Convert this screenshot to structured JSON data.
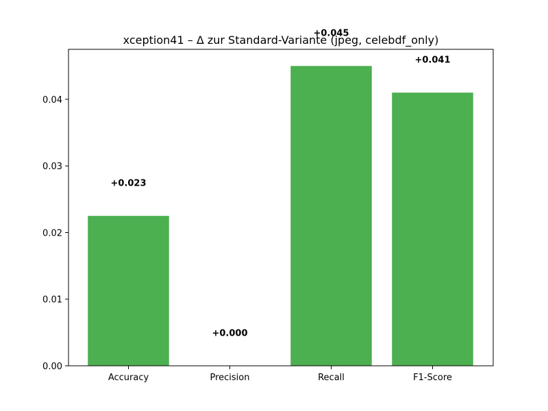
{
  "chart_data": {
    "type": "bar",
    "title": "xception41 – Δ zur Standard-Variante (jpeg, celebdf_only)",
    "xlabel": "",
    "ylabel": "",
    "categories": [
      "Accuracy",
      "Precision",
      "Recall",
      "F1-Score"
    ],
    "values": [
      0.0225,
      0.0,
      0.045,
      0.041
    ],
    "data_labels": [
      "+0.023",
      "+0.000",
      "+0.045",
      "+0.041"
    ],
    "ylim": [
      0,
      0.0475
    ],
    "yticks": [
      0.0,
      0.01,
      0.02,
      0.03,
      0.04
    ],
    "ytick_labels": [
      "0.00",
      "0.01",
      "0.02",
      "0.03",
      "0.04"
    ],
    "grid": false,
    "bar_color": "#4caf50"
  }
}
